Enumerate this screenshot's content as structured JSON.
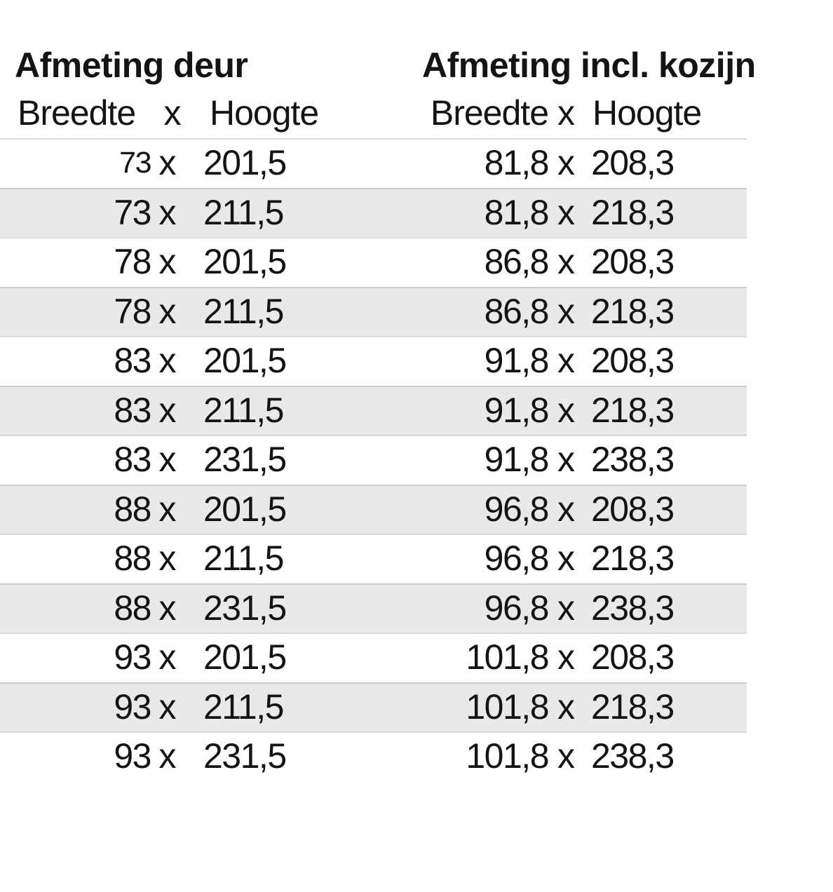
{
  "chart_data": {
    "type": "table",
    "groups": [
      {
        "title": "Afmeting deur",
        "width_label": "Breedte",
        "separator_label": "x",
        "height_label": "Hoogte"
      },
      {
        "title": "Afmeting incl. kozijn",
        "width_label": "Breedte",
        "separator_label": "x",
        "height_label": "Hoogte"
      }
    ],
    "separator": "x",
    "rows": [
      {
        "door_width": "73",
        "door_height": "201,5",
        "frame_width": "81,8",
        "frame_height": "208,3"
      },
      {
        "door_width": "73",
        "door_height": "211,5",
        "frame_width": "81,8",
        "frame_height": "218,3"
      },
      {
        "door_width": "78",
        "door_height": "201,5",
        "frame_width": "86,8",
        "frame_height": "208,3"
      },
      {
        "door_width": "78",
        "door_height": "211,5",
        "frame_width": "86,8",
        "frame_height": "218,3"
      },
      {
        "door_width": "83",
        "door_height": "201,5",
        "frame_width": "91,8",
        "frame_height": "208,3"
      },
      {
        "door_width": "83",
        "door_height": "211,5",
        "frame_width": "91,8",
        "frame_height": "218,3"
      },
      {
        "door_width": "83",
        "door_height": "231,5",
        "frame_width": "91,8",
        "frame_height": "238,3"
      },
      {
        "door_width": "88",
        "door_height": "201,5",
        "frame_width": "96,8",
        "frame_height": "208,3"
      },
      {
        "door_width": "88",
        "door_height": "211,5",
        "frame_width": "96,8",
        "frame_height": "218,3"
      },
      {
        "door_width": "88",
        "door_height": "231,5",
        "frame_width": "96,8",
        "frame_height": "238,3"
      },
      {
        "door_width": "93",
        "door_height": "201,5",
        "frame_width": "101,8",
        "frame_height": "208,3"
      },
      {
        "door_width": "93",
        "door_height": "211,5",
        "frame_width": "101,8",
        "frame_height": "218,3"
      },
      {
        "door_width": "93",
        "door_height": "231,5",
        "frame_width": "101,8",
        "frame_height": "238,3"
      }
    ],
    "layout": {
      "stripe_pattern": "alternating, first row white",
      "grid": "off",
      "legend": "none"
    }
  },
  "styles": {
    "stripe_color": "#e9e9e9",
    "text_color": "#141414",
    "divider_color": "rgba(150,150,150,0.35)"
  }
}
